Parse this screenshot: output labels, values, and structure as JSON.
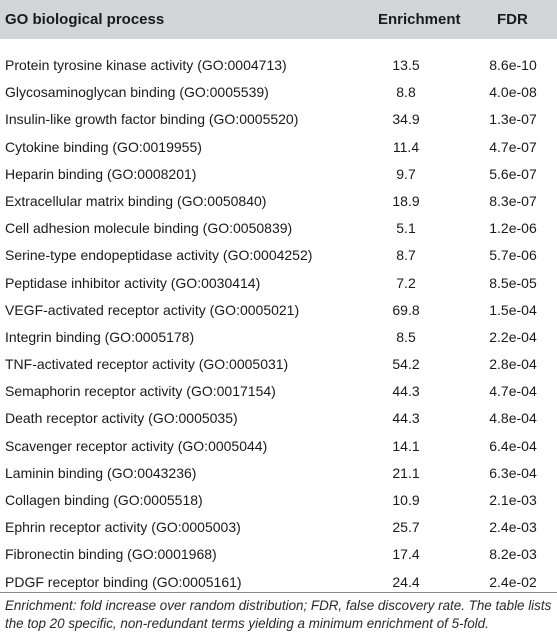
{
  "table": {
    "headers": {
      "process": "GO biological process",
      "enrichment": "Enrichment",
      "fdr": "FDR"
    },
    "rows": [
      {
        "process": "Protein tyrosine kinase activity (GO:0004713)",
        "enrichment": "13.5",
        "fdr": "8.6e-10"
      },
      {
        "process": "Glycosaminoglycan binding (GO:0005539)",
        "enrichment": "8.8",
        "fdr": "4.0e-08"
      },
      {
        "process": "Insulin-like growth factor binding (GO:0005520)",
        "enrichment": "34.9",
        "fdr": "1.3e-07"
      },
      {
        "process": "Cytokine binding (GO:0019955)",
        "enrichment": "11.4",
        "fdr": "4.7e-07"
      },
      {
        "process": "Heparin binding (GO:0008201)",
        "enrichment": "9.7",
        "fdr": "5.6e-07"
      },
      {
        "process": "Extracellular matrix binding (GO:0050840)",
        "enrichment": "18.9",
        "fdr": "8.3e-07"
      },
      {
        "process": "Cell adhesion molecule binding (GO:0050839)",
        "enrichment": "5.1",
        "fdr": "1.2e-06"
      },
      {
        "process": "Serine-type endopeptidase activity (GO:0004252)",
        "enrichment": "8.7",
        "fdr": "5.7e-06"
      },
      {
        "process": "Peptidase inhibitor activity (GO:0030414)",
        "enrichment": "7.2",
        "fdr": "8.5e-05"
      },
      {
        "process": "VEGF-activated receptor activity (GO:0005021)",
        "enrichment": "69.8",
        "fdr": "1.5e-04"
      },
      {
        "process": "Integrin binding (GO:0005178)",
        "enrichment": "8.5",
        "fdr": "2.2e-04"
      },
      {
        "process": "TNF-activated receptor activity (GO:0005031)",
        "enrichment": "54.2",
        "fdr": "2.8e-04"
      },
      {
        "process": "Semaphorin receptor activity (GO:0017154)",
        "enrichment": "44.3",
        "fdr": "4.7e-04"
      },
      {
        "process": "Death receptor activity (GO:0005035)",
        "enrichment": "44.3",
        "fdr": "4.8e-04"
      },
      {
        "process": "Scavenger receptor activity (GO:0005044)",
        "enrichment": "14.1",
        "fdr": "6.4e-04"
      },
      {
        "process": "Laminin binding (GO:0043236)",
        "enrichment": "21.1",
        "fdr": "6.3e-04"
      },
      {
        "process": "Collagen binding (GO:0005518)",
        "enrichment": "10.9",
        "fdr": "2.1e-03"
      },
      {
        "process": "Ephrin receptor activity (GO:0005003)",
        "enrichment": "25.7",
        "fdr": "2.4e-03"
      },
      {
        "process": "Fibronectin binding (GO:0001968)",
        "enrichment": "17.4",
        "fdr": "8.2e-03"
      },
      {
        "process": "PDGF receptor binding (GO:0005161)",
        "enrichment": "24.4",
        "fdr": "2.4e-02"
      }
    ],
    "footnote": "Enrichment: fold increase over random distribution; FDR, false discovery rate. The table lists the top 20 specific, non-redundant terms yielding a minimum enrichment of 5-fold."
  },
  "colors": {
    "header_background": "#d2d4d8",
    "text": "#1a1a1a"
  }
}
